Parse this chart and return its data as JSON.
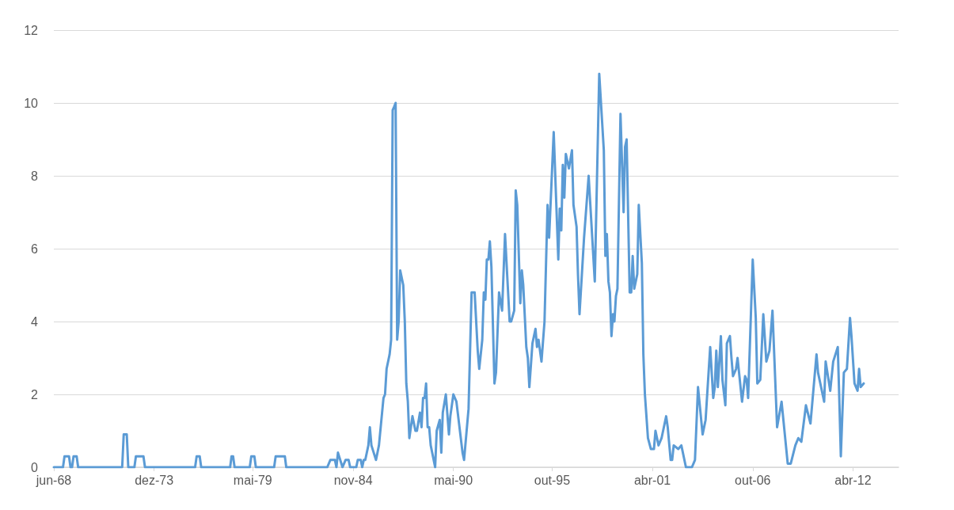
{
  "chart_data": {
    "type": "line",
    "x": [
      "1968-06",
      "1968-12",
      "1969-01",
      "1969-04",
      "1969-05",
      "1969-06",
      "1969-07",
      "1969-09",
      "1969-10",
      "1972-03",
      "1972-04",
      "1972-06",
      "1972-07",
      "1972-11",
      "1972-12",
      "1973-05",
      "1973-06",
      "1976-03",
      "1976-04",
      "1976-06",
      "1976-07",
      "1978-02",
      "1978-03",
      "1978-04",
      "1978-05",
      "1979-03",
      "1979-04",
      "1979-06",
      "1979-07",
      "1980-07",
      "1980-08",
      "1981-02",
      "1981-03",
      "1983-06",
      "1983-08",
      "1983-11",
      "1983-12",
      "1984-01",
      "1984-04",
      "1984-06",
      "1984-08",
      "1984-09",
      "1985-01",
      "1985-02",
      "1985-04",
      "1985-05",
      "1985-06",
      "1985-07",
      "1985-09",
      "1985-10",
      "1985-11",
      "1986-02",
      "1986-04",
      "1986-07",
      "1986-08",
      "1986-09",
      "1986-11",
      "1986-12",
      "1987-01",
      "1987-02",
      "1987-03",
      "1987-04",
      "1987-05",
      "1987-06",
      "1987-08",
      "1987-09",
      "1987-10",
      "1987-11",
      "1987-12",
      "1988-02",
      "1988-04",
      "1988-05",
      "1988-07",
      "1988-08",
      "1988-09",
      "1988-10",
      "1988-11",
      "1988-12",
      "1989-01",
      "1989-02",
      "1989-05",
      "1989-06",
      "1989-08",
      "1989-09",
      "1989-10",
      "1989-12",
      "1990-02",
      "1990-03",
      "1990-05",
      "1990-07",
      "1990-11",
      "1990-12",
      "1991-03",
      "1991-05",
      "1991-07",
      "1991-09",
      "1991-10",
      "1991-12",
      "1992-01",
      "1992-02",
      "1992-03",
      "1992-04",
      "1992-05",
      "1992-06",
      "1992-08",
      "1992-09",
      "1992-11",
      "1993-01",
      "1993-03",
      "1993-06",
      "1993-07",
      "1993-09",
      "1993-10",
      "1993-11",
      "1994-01",
      "1994-02",
      "1994-03",
      "1994-05",
      "1994-06",
      "1994-07",
      "1994-09",
      "1994-11",
      "1994-12",
      "1995-01",
      "1995-03",
      "1995-05",
      "1995-07",
      "1995-08",
      "1995-11",
      "1996-02",
      "1996-03",
      "1996-04",
      "1996-05",
      "1996-06",
      "1996-07",
      "1996-09",
      "1996-11",
      "1996-12",
      "1997-02",
      "1997-03",
      "1997-04",
      "1997-07",
      "1997-10",
      "1998-02",
      "1998-05",
      "1998-08",
      "1998-09",
      "1998-10",
      "1998-11",
      "1998-12",
      "1999-01",
      "1999-02",
      "1999-03",
      "1999-04",
      "1999-05",
      "1999-07",
      "1999-09",
      "1999-10",
      "1999-11",
      "2000-01",
      "2000-02",
      "2000-03",
      "2000-04",
      "2000-06",
      "2000-07",
      "2000-09",
      "2000-10",
      "2000-11",
      "2001-01",
      "2001-03",
      "2001-05",
      "2001-06",
      "2001-08",
      "2001-10",
      "2002-01",
      "2002-02",
      "2002-04",
      "2002-05",
      "2002-06",
      "2002-09",
      "2002-11",
      "2003-02",
      "2003-06",
      "2003-08",
      "2003-10",
      "2004-01",
      "2004-03",
      "2004-06",
      "2004-08",
      "2004-09",
      "2004-10",
      "2004-11",
      "2005-01",
      "2005-02",
      "2005-04",
      "2005-05",
      "2005-07",
      "2005-08",
      "2005-09",
      "2005-11",
      "2005-12",
      "2006-03",
      "2006-05",
      "2006-06",
      "2006-07",
      "2006-10",
      "2006-12",
      "2007-01",
      "2007-03",
      "2007-05",
      "2007-07",
      "2007-09",
      "2007-11",
      "2008-02",
      "2008-05",
      "2008-09",
      "2008-11",
      "2009-02",
      "2009-04",
      "2009-06",
      "2009-09",
      "2009-12",
      "2010-04",
      "2010-05",
      "2010-09",
      "2010-10",
      "2011-01",
      "2011-03",
      "2011-06",
      "2011-07",
      "2011-08",
      "2011-10",
      "2011-12",
      "2012-02",
      "2012-03",
      "2012-05",
      "2012-07",
      "2012-08",
      "2012-09",
      "2012-11"
    ],
    "values": [
      0,
      0,
      0.3,
      0.3,
      0,
      0,
      0.3,
      0.3,
      0,
      0,
      0.9,
      0.9,
      0,
      0,
      0.3,
      0.3,
      0,
      0,
      0.3,
      0.3,
      0,
      0,
      0.3,
      0.3,
      0,
      0,
      0.3,
      0.3,
      0,
      0,
      0.3,
      0.3,
      0,
      0,
      0.2,
      0.2,
      0,
      0.4,
      0,
      0.2,
      0.2,
      0,
      0,
      0.2,
      0.2,
      0,
      0.2,
      0.2,
      0.6,
      1.1,
      0.6,
      0.2,
      0.6,
      1.9,
      2.0,
      2.7,
      3.1,
      3.5,
      9.8,
      9.9,
      10.0,
      3.5,
      4.0,
      5.4,
      5.0,
      4.0,
      2.3,
      1.8,
      0.8,
      1.4,
      1.0,
      1.0,
      1.5,
      1.1,
      1.9,
      1.9,
      2.3,
      1.1,
      1.1,
      0.6,
      0,
      1.0,
      1.3,
      0.4,
      1.5,
      2.0,
      0.9,
      1.4,
      2.0,
      1.8,
      0.4,
      0.2,
      1.6,
      4.8,
      4.8,
      3.2,
      2.7,
      3.5,
      4.8,
      4.6,
      5.7,
      5.7,
      6.2,
      5.5,
      2.3,
      2.6,
      4.8,
      4.3,
      6.4,
      4.0,
      4.0,
      4.3,
      7.6,
      7.2,
      4.5,
      5.4,
      5.0,
      3.3,
      3.0,
      2.2,
      3.4,
      3.8,
      3.3,
      3.5,
      2.9,
      4.0,
      7.2,
      6.3,
      9.2,
      5.7,
      7.1,
      6.5,
      8.3,
      7.4,
      8.6,
      8.2,
      8.7,
      7.2,
      6.6,
      5.3,
      4.2,
      6.3,
      8.0,
      5.1,
      10.8,
      8.7,
      5.8,
      6.4,
      5.1,
      4.8,
      3.6,
      4.2,
      4.0,
      4.7,
      4.9,
      9.7,
      7.0,
      8.8,
      9.0,
      4.8,
      4.8,
      5.8,
      4.9,
      5.3,
      7.2,
      5.6,
      3.1,
      2.0,
      0.8,
      0.5,
      0.5,
      1.0,
      0.6,
      0.8,
      1.4,
      1.1,
      0.2,
      0.2,
      0.6,
      0.5,
      0.6,
      0,
      0,
      0.2,
      2.2,
      0.9,
      1.3,
      3.3,
      1.9,
      2.2,
      3.2,
      2.2,
      3.6,
      2.4,
      1.7,
      3.4,
      3.6,
      3.0,
      2.5,
      2.7,
      3.0,
      1.8,
      2.5,
      2.4,
      1.9,
      5.7,
      4.1,
      2.3,
      2.4,
      4.2,
      2.9,
      3.2,
      4.3,
      1.1,
      1.8,
      0.1,
      0.1,
      0.6,
      0.8,
      0.7,
      1.7,
      1.2,
      3.1,
      2.6,
      1.8,
      2.9,
      2.1,
      2.9,
      3.3,
      1.9,
      0.3,
      2.6,
      2.7,
      4.1,
      3.6,
      2.3,
      2.1,
      2.7,
      2.2,
      2.3
    ],
    "color": "#5b9bd5",
    "xlim": [
      "1968-06",
      "2014-10"
    ],
    "xticks": [
      {
        "value": "1968-06",
        "label": "jun-68"
      },
      {
        "value": "1973-12",
        "label": "dez-73"
      },
      {
        "value": "1979-05",
        "label": "mai-79"
      },
      {
        "value": "1984-11",
        "label": "nov-84"
      },
      {
        "value": "1990-05",
        "label": "mai-90"
      },
      {
        "value": "1995-10",
        "label": "out-95"
      },
      {
        "value": "2001-04",
        "label": "abr-01"
      },
      {
        "value": "2006-10",
        "label": "out-06"
      },
      {
        "value": "2012-04",
        "label": "abr-12"
      }
    ],
    "ylim": [
      0,
      12
    ],
    "yticks": [
      0,
      2,
      4,
      6,
      8,
      10,
      12
    ],
    "grid": "y",
    "marker": "none",
    "line_style": "solid"
  }
}
